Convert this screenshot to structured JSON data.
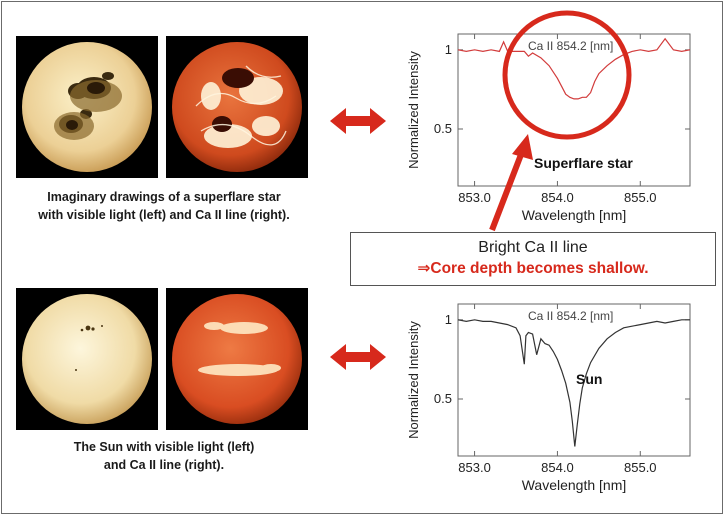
{
  "captions": {
    "superflare": [
      "Imaginary drawings of a superflare star",
      "with visible light (left) and Ca II line (right)."
    ],
    "sun": [
      "The Sun with visible light (left)",
      "and Ca II line (right)."
    ]
  },
  "callout": {
    "line1": "Bright Ca II line",
    "line2": "⇒Core depth becomes shallow."
  },
  "colors": {
    "arrow": "#d7291c",
    "superflare_line": "#d23c3c",
    "sun_line": "#333333",
    "visible_disk": "#f0d9a0",
    "caii_disk": "#d4471c"
  },
  "chart_data": [
    {
      "type": "line",
      "panel": "superflare",
      "annotation": "Ca II 854.2 [nm]",
      "label": "Superflare star",
      "xlabel": "Wavelength [nm]",
      "ylabel": "Normalized Intensity",
      "xlim": [
        852.8,
        855.6
      ],
      "ylim": [
        0.14,
        1.1
      ],
      "xticks": [
        "853.0",
        "854.0",
        "855.0"
      ],
      "xtick_values": [
        853.0,
        854.0,
        855.0
      ],
      "yticks": [
        "0.5",
        "1"
      ],
      "ytick_values": [
        0.5,
        1.0
      ],
      "series": [
        {
          "x": [
            852.8,
            852.9,
            853.0,
            853.1,
            853.2,
            853.3,
            853.35,
            853.4,
            853.5,
            853.6,
            853.65,
            853.7,
            853.8,
            853.9,
            854.0,
            854.05,
            854.1,
            854.15,
            854.2,
            854.25,
            854.3,
            854.35,
            854.4,
            854.45,
            854.5,
            854.6,
            854.7,
            854.8,
            854.9,
            855.0,
            855.1,
            855.2,
            855.3,
            855.4,
            855.5,
            855.6
          ],
          "y": [
            1.0,
            0.99,
            1.0,
            0.99,
            1.0,
            0.99,
            1.05,
            0.99,
            0.99,
            0.99,
            0.96,
            0.98,
            0.95,
            0.9,
            0.82,
            0.77,
            0.72,
            0.7,
            0.69,
            0.69,
            0.7,
            0.7,
            0.73,
            0.8,
            0.85,
            0.9,
            0.94,
            0.97,
            0.99,
            1.0,
            0.99,
            1.0,
            1.07,
            1.0,
            0.99,
            1.0
          ]
        }
      ]
    },
    {
      "type": "line",
      "panel": "sun",
      "annotation": "Ca II 854.2 [nm]",
      "label": "Sun",
      "xlabel": "Wavelength [nm]",
      "ylabel": "Normalized Intensity",
      "xlim": [
        852.8,
        855.6
      ],
      "ylim": [
        0.14,
        1.1
      ],
      "xticks": [
        "853.0",
        "854.0",
        "855.0"
      ],
      "xtick_values": [
        853.0,
        854.0,
        855.0
      ],
      "yticks": [
        "0.5",
        "1"
      ],
      "ytick_values": [
        0.5,
        1.0
      ],
      "series": [
        {
          "x": [
            852.8,
            852.9,
            853.0,
            853.1,
            853.2,
            853.3,
            853.4,
            853.5,
            853.55,
            853.6,
            853.62,
            853.65,
            853.7,
            853.75,
            853.8,
            853.85,
            853.9,
            853.95,
            854.0,
            854.05,
            854.1,
            854.15,
            854.18,
            854.21,
            854.24,
            854.27,
            854.3,
            854.35,
            854.4,
            854.5,
            854.6,
            854.7,
            854.8,
            854.9,
            855.0,
            855.1,
            855.2,
            855.3,
            855.4,
            855.5,
            855.6
          ],
          "y": [
            1.0,
            0.99,
            1.0,
            0.99,
            0.99,
            0.98,
            0.97,
            0.95,
            0.9,
            0.72,
            0.9,
            0.92,
            0.91,
            0.78,
            0.88,
            0.85,
            0.84,
            0.8,
            0.75,
            0.68,
            0.6,
            0.48,
            0.36,
            0.2,
            0.34,
            0.47,
            0.57,
            0.66,
            0.73,
            0.82,
            0.88,
            0.92,
            0.95,
            0.96,
            0.97,
            0.98,
            0.99,
            0.98,
            0.99,
            1.0,
            1.0
          ]
        }
      ]
    }
  ]
}
